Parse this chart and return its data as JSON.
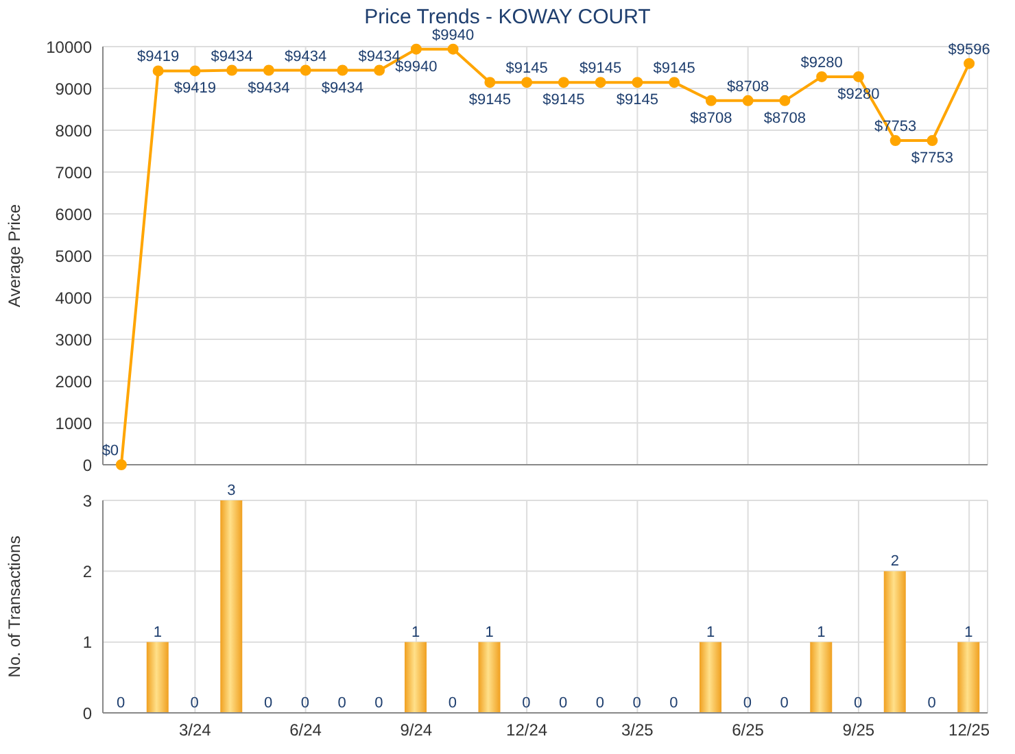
{
  "chart_data": [
    {
      "type": "line",
      "title": "Price Trends - KOWAY COURT",
      "ylabel": "Average Price",
      "series": [
        {
          "color": "#ffa500",
          "values": [
            0,
            9419,
            9419,
            9434,
            9434,
            9434,
            9434,
            9434,
            9940,
            9940,
            9145,
            9145,
            9145,
            9145,
            9145,
            9145,
            8708,
            8708,
            8708,
            9280,
            9280,
            7753,
            7753,
            9596
          ],
          "value_labels": [
            "$0",
            "$9419",
            "$9419",
            "$9434",
            "$9434",
            "$9434",
            "$9434",
            "$9434",
            "$9940",
            "$9940",
            "$9145",
            "$9145",
            "$9145",
            "$9145",
            "$9145",
            "$9145",
            "$8708",
            "$8708",
            "$8708",
            "$9280",
            "$9280",
            "$7753",
            "$7753",
            "$9596"
          ]
        }
      ],
      "ylim": [
        0,
        10000
      ],
      "yticks": [
        0,
        1000,
        2000,
        3000,
        4000,
        5000,
        6000,
        7000,
        8000,
        9000,
        10000
      ],
      "grid": true,
      "marker": "circle",
      "tick_labels": "y",
      "legend": false
    },
    {
      "type": "bar",
      "ylabel": "No. of Transactions",
      "categories": [
        null,
        null,
        "3/24",
        null,
        null,
        "6/24",
        null,
        null,
        "9/24",
        null,
        null,
        "12/24",
        null,
        null,
        "3/25",
        null,
        null,
        "6/25",
        null,
        null,
        "9/25",
        null,
        null,
        "12/25"
      ],
      "series": [
        {
          "color": "#f0a020",
          "values": [
            0,
            1,
            0,
            3,
            0,
            0,
            0,
            0,
            1,
            0,
            1,
            0,
            0,
            0,
            0,
            0,
            1,
            0,
            0,
            1,
            0,
            2,
            0,
            1
          ]
        }
      ],
      "ylim": [
        0,
        3
      ],
      "yticks": [
        0,
        1,
        2,
        3
      ],
      "grid": true,
      "data_labels": true,
      "legend": false
    }
  ]
}
